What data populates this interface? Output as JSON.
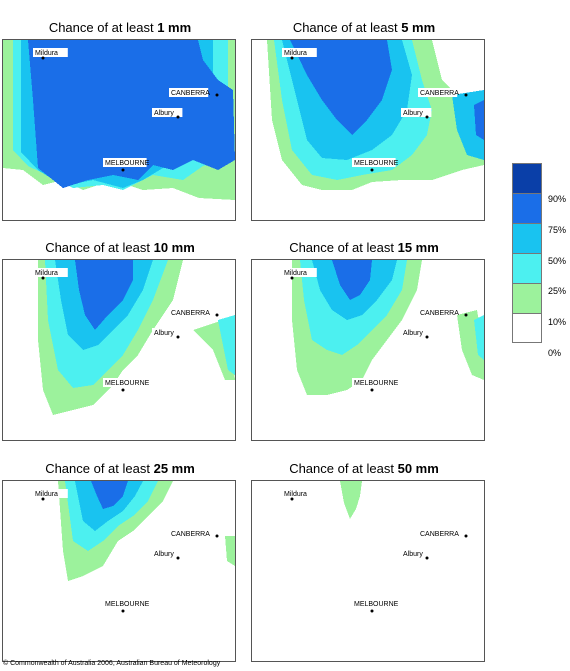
{
  "panels": [
    {
      "title_prefix": "Chance of at least ",
      "title_value": "1 mm"
    },
    {
      "title_prefix": "Chance of at least ",
      "title_value": "5 mm"
    },
    {
      "title_prefix": "Chance of at least ",
      "title_value": "10 mm"
    },
    {
      "title_prefix": "Chance of at least ",
      "title_value": "15 mm"
    },
    {
      "title_prefix": "Chance of at least ",
      "title_value": "25 mm"
    },
    {
      "title_prefix": "Chance of at least ",
      "title_value": "50 mm"
    }
  ],
  "cities": {
    "mildura": "Mildura",
    "canberra": "CANBERRA",
    "albury": "Albury",
    "melbourne": "MELBOURNE"
  },
  "legend": {
    "labels": [
      "90%",
      "75%",
      "50%",
      "25%",
      "10%",
      "0%"
    ],
    "colors": [
      "#0a3fa8",
      "#1a6ee8",
      "#19c3f0",
      "#4cf0f0",
      "#9cf29c",
      "#ffffff"
    ]
  },
  "copyright": "© Commonwealth of Australia 2006, Australian Bureau of Meteorology"
}
